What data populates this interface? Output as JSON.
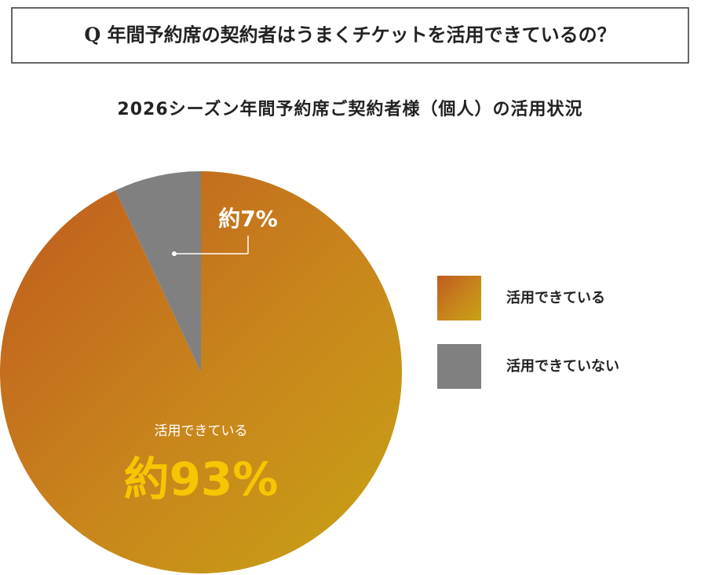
{
  "question": "Q 年間予約席の契約者はうまくチケットを活用できているの？",
  "chart_data": {
    "type": "pie",
    "title": "2026シーズン年間予約席ご契約者様（個人）の活用状況",
    "categories": [
      "活用できている",
      "活用できていない"
    ],
    "values": [
      93,
      7
    ],
    "value_labels": [
      "約93%",
      "約7%"
    ],
    "colors": [
      "#c8861c",
      "#808080"
    ],
    "legend": "right"
  }
}
